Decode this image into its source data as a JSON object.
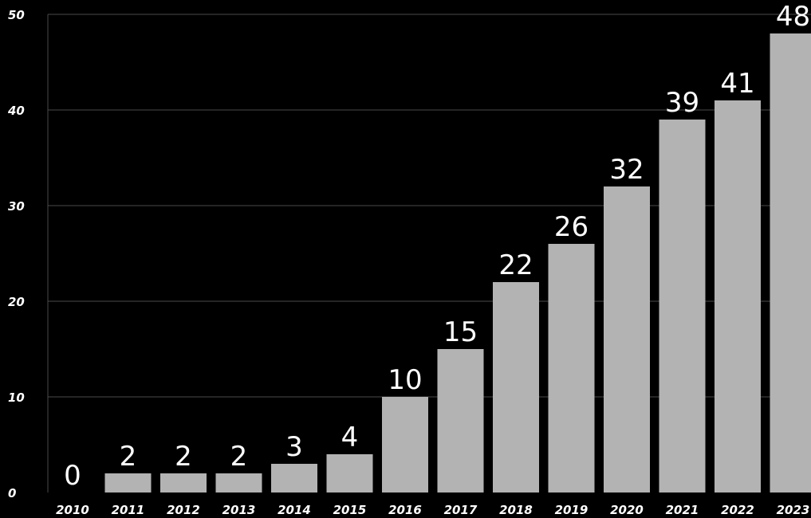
{
  "chart_data": {
    "type": "bar",
    "categories": [
      "2010",
      "2011",
      "2012",
      "2013",
      "2014",
      "2015",
      "2016",
      "2017",
      "2018",
      "2019",
      "2020",
      "2021",
      "2022",
      "2023"
    ],
    "values": [
      0,
      2,
      2,
      2,
      3,
      4,
      10,
      15,
      22,
      26,
      32,
      39,
      41,
      48
    ],
    "data_labels": [
      "0",
      "2",
      "2",
      "2",
      "3",
      "4",
      "10",
      "15",
      "22",
      "26",
      "32",
      "39",
      "41",
      "48"
    ],
    "title": "",
    "xlabel": "",
    "ylabel": "",
    "ylim": [
      0,
      50
    ],
    "yticks": [
      0,
      10,
      20,
      30,
      40,
      50
    ],
    "grid": true,
    "legend": "none",
    "colors": {
      "background": "#000000",
      "bar": "#b3b3b3",
      "grid": "#4a4a4a",
      "text": "#ffffff"
    }
  }
}
